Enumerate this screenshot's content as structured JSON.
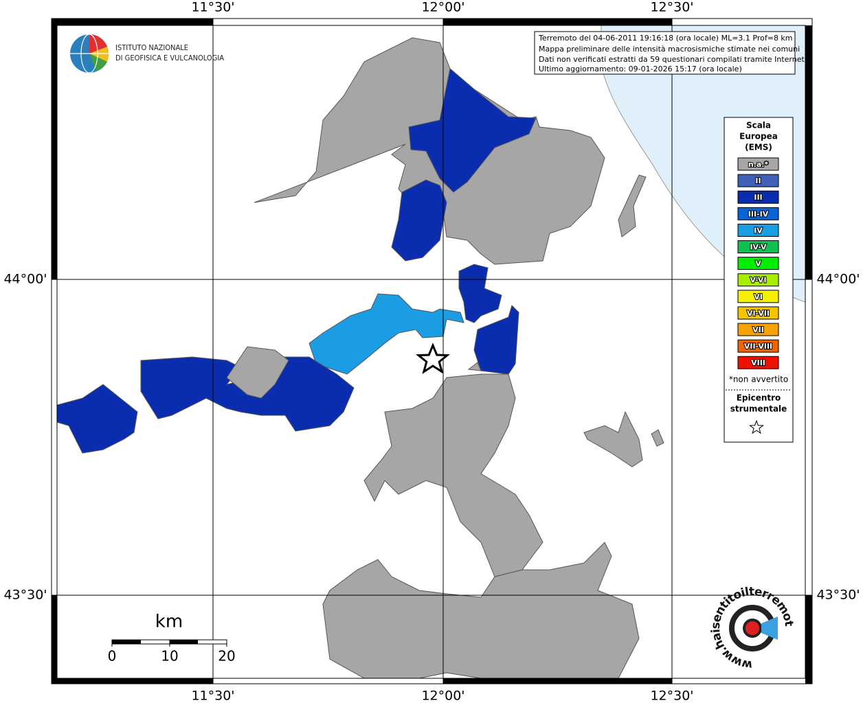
{
  "axes": {
    "x_labels": [
      "11°30'",
      "12°00'",
      "12°30'"
    ],
    "y_labels": [
      "44°00'",
      "43°30'"
    ]
  },
  "logo": {
    "lines": [
      "ISTITUTO NAZIONALE",
      "DI GEOFISICA E VULCANOLOGIA"
    ]
  },
  "info": {
    "lines": [
      "Terremoto del 04-06-2011 19:16:18 (ora locale) ML=3.1 Prof=8 km",
      "Mappa preliminare delle intensità macrosismiche stimate nei comuni",
      "Dati non verificati estratti da 59 questionari compilati tramite Internet.",
      "Ultimo aggiornamento: 09-01-2026 15:17 (ora locale)"
    ]
  },
  "legend": {
    "title": [
      "Scala",
      "Europea",
      "(EMS)"
    ],
    "items": [
      {
        "label": "n.a.*",
        "color": "#a6a6a6"
      },
      {
        "label": "II",
        "color": "#3f5fb8"
      },
      {
        "label": "III",
        "color": "#0a2db0"
      },
      {
        "label": "III-IV",
        "color": "#0a64d8"
      },
      {
        "label": "IV",
        "color": "#1a9de2"
      },
      {
        "label": "IV-V",
        "color": "#10c050"
      },
      {
        "label": "V",
        "color": "#00ee00"
      },
      {
        "label": "V-VI",
        "color": "#a8ee00"
      },
      {
        "label": "VI",
        "color": "#f4f000"
      },
      {
        "label": "VI-VII",
        "color": "#f4c400"
      },
      {
        "label": "VII",
        "color": "#f7a200"
      },
      {
        "label": "VII-VIII",
        "color": "#f06400"
      },
      {
        "label": "VIII",
        "color": "#f01000"
      }
    ],
    "note": "*non avvertito",
    "epicenter": [
      "Epicentro",
      "strumentale"
    ]
  },
  "scale": {
    "unit": "km",
    "labels": [
      "0",
      "10",
      "20"
    ]
  },
  "site": {
    "text": "www.haisentitoilterremoto.it"
  }
}
